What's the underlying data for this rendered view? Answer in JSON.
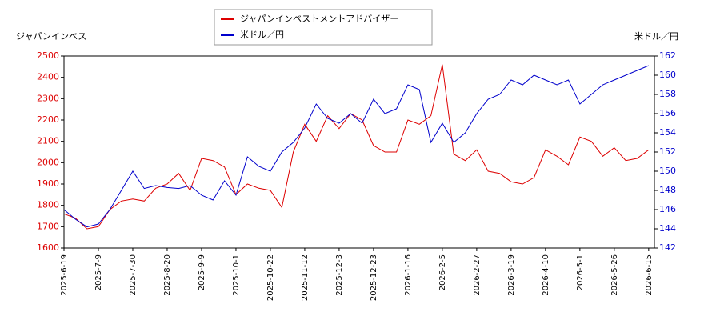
{
  "chart_data": {
    "type": "line",
    "y_label": "ジャパンインベス",
    "y2_label": "米ドル／円",
    "categories": [
      "2025-6-19",
      null,
      null,
      "2025-7-9",
      null,
      null,
      "2025-7-30",
      null,
      null,
      "2025-8-20",
      null,
      null,
      "2025-9-9",
      null,
      null,
      "2025-10-1",
      null,
      null,
      "2025-10-22",
      null,
      null,
      "2025-11-12",
      null,
      null,
      "2025-12-3",
      null,
      null,
      "2025-12-23",
      null,
      null,
      "2026-1-16",
      null,
      null,
      "2026-2-5",
      null,
      null,
      "2026-2-27",
      null,
      null,
      "2026-3-19",
      null,
      null,
      "2026-4-10",
      null,
      null,
      "2026-5-1",
      null,
      null,
      "2026-5-26",
      null,
      null,
      "2026-6-15"
    ],
    "series": [
      {
        "name": "ジャパンインベストメントアドバイザー",
        "color": "#dd0000",
        "axis": "y",
        "values": [
          1760,
          1740,
          1690,
          1700,
          1780,
          1820,
          1830,
          1820,
          1880,
          1900,
          1950,
          1870,
          2020,
          2010,
          1980,
          1850,
          1900,
          1880,
          1870,
          1790,
          2050,
          2180,
          2100,
          2220,
          2160,
          2230,
          2200,
          2080,
          2050,
          2050,
          2200,
          2180,
          2220,
          2460,
          2040,
          2010,
          2060,
          1960,
          1950,
          1910,
          1900,
          1930,
          2060,
          2030,
          1990,
          2120,
          2100,
          2030,
          2070,
          2010,
          2020,
          2060
        ]
      },
      {
        "name": "米ドル／円",
        "color": "#0000cc",
        "axis": "y2",
        "values": [
          146,
          145,
          144.2,
          144.5,
          146,
          148,
          150,
          148.2,
          148.5,
          148.3,
          148.2,
          148.5,
          147.5,
          147,
          149,
          147.5,
          151.5,
          150.5,
          150,
          152,
          153,
          154.5,
          157,
          155.5,
          155,
          156,
          155,
          157.5,
          156,
          156.5,
          159,
          158.5,
          153,
          155,
          153,
          154,
          156,
          157.5,
          158,
          159.5,
          159,
          160,
          159.5,
          159,
          159.5,
          157,
          158,
          159,
          159.5,
          160,
          160.5,
          161
        ]
      }
    ],
    "ylim": [
      1600,
      2500
    ],
    "yticks": [
      1600,
      1700,
      1800,
      1900,
      2000,
      2100,
      2200,
      2300,
      2400,
      2500
    ],
    "y2lim": [
      142,
      162
    ],
    "y2ticks": [
      142,
      144,
      146,
      148,
      150,
      152,
      154,
      156,
      158,
      160,
      162
    ]
  }
}
